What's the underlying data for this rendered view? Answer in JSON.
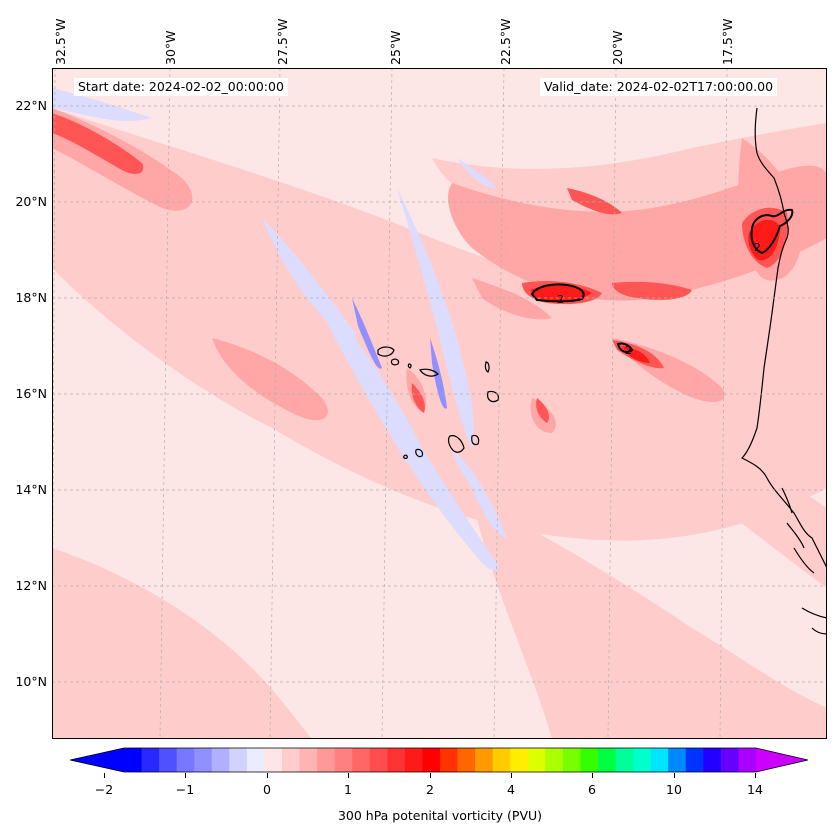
{
  "header": {
    "start_date": "Start date: 2024-02-02_00:00:00",
    "valid_date": "Valid_date: 2024-02-02T17:00:00.00"
  },
  "axes": {
    "longitude_labels": [
      "32.5°W",
      "30°W",
      "27.5°W",
      "25°W",
      "22.5°W",
      "20°W",
      "17.5°W"
    ],
    "latitude_labels": [
      "22°N",
      "20°N",
      "18°N",
      "16°N",
      "14°N",
      "12°N",
      "10°N"
    ]
  },
  "map": {
    "field": "300 hPa potential vorticity",
    "contour_label": "2",
    "contour_label_count": 3
  },
  "colorbar": {
    "label": "300 hPa potenital vorticity (PVU)",
    "tick_labels": [
      "−2",
      "−1",
      "0",
      "1",
      "2",
      "4",
      "6",
      "10",
      "14"
    ],
    "colors": [
      "#0000ff",
      "#2828ff",
      "#5050ff",
      "#7878ff",
      "#9090ff",
      "#b0b0ff",
      "#d2d2ff",
      "#ececff",
      "#ffe6e6",
      "#ffcccc",
      "#ffb3b3",
      "#ff9999",
      "#ff8080",
      "#ff6666",
      "#ff4d4d",
      "#ff3333",
      "#ff1a1a",
      "#ff0000",
      "#ff3300",
      "#ff6600",
      "#ff9900",
      "#ffcc00",
      "#ffee00",
      "#ddff00",
      "#aaff00",
      "#77ff00",
      "#33ff00",
      "#00ff44",
      "#00ff99",
      "#00ffcc",
      "#00e5ff",
      "#0088ff",
      "#0033ff",
      "#2200ff",
      "#6600ff",
      "#aa00ff"
    ],
    "under_color": "#0000ff",
    "over_color": "#cc00ff"
  }
}
